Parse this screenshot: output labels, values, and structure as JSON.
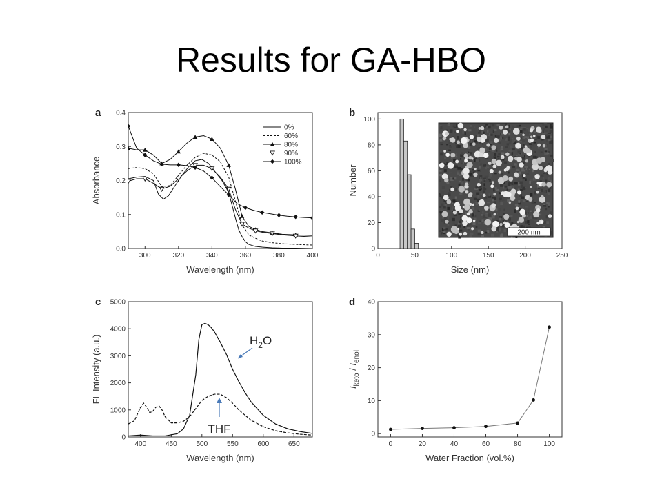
{
  "slide": {
    "title": "Results for GA-HBO"
  },
  "chart_data": [
    {
      "panel": "a",
      "type": "line",
      "xlabel": "Wavelength (nm)",
      "ylabel": "Absorbance",
      "xlim": [
        290,
        400
      ],
      "ylim": [
        0,
        0.4
      ],
      "xticks": [
        300,
        320,
        340,
        360,
        380,
        400
      ],
      "yticks": [
        0.0,
        0.1,
        0.2,
        0.3,
        0.4
      ],
      "legend": "top-right",
      "series": [
        {
          "name": "0%",
          "marker": "none",
          "dash": "solid",
          "x": [
            290,
            295,
            300,
            305,
            308,
            311,
            314,
            318,
            322,
            326,
            330,
            334,
            338,
            342,
            346,
            350,
            354,
            356,
            358,
            360,
            362,
            366,
            370,
            376,
            382,
            390,
            400
          ],
          "y": [
            0.205,
            0.21,
            0.212,
            0.2,
            0.16,
            0.145,
            0.155,
            0.185,
            0.215,
            0.24,
            0.258,
            0.262,
            0.25,
            0.225,
            0.2,
            0.165,
            0.09,
            0.055,
            0.035,
            0.02,
            0.012,
            0.006,
            0.004,
            0.002,
            0.001,
            0.001,
            0.0
          ]
        },
        {
          "name": "60%",
          "marker": "none",
          "dash": "dashed",
          "x": [
            290,
            295,
            300,
            305,
            310,
            315,
            320,
            325,
            330,
            335,
            340,
            345,
            350,
            354,
            358,
            362,
            366,
            370,
            376,
            382,
            390,
            400
          ],
          "y": [
            0.235,
            0.238,
            0.235,
            0.22,
            0.182,
            0.185,
            0.215,
            0.245,
            0.268,
            0.28,
            0.275,
            0.255,
            0.21,
            0.14,
            0.07,
            0.04,
            0.03,
            0.022,
            0.017,
            0.014,
            0.012,
            0.01
          ]
        },
        {
          "name": "80%",
          "marker": "triangle",
          "dash": "solid",
          "x": [
            290,
            295,
            300,
            305,
            310,
            315,
            320,
            325,
            330,
            335,
            340,
            345,
            350,
            354,
            358,
            362,
            366,
            370,
            376,
            382,
            390,
            400
          ],
          "y": [
            0.295,
            0.29,
            0.29,
            0.275,
            0.25,
            0.262,
            0.285,
            0.31,
            0.328,
            0.332,
            0.322,
            0.295,
            0.245,
            0.175,
            0.095,
            0.065,
            0.056,
            0.05,
            0.046,
            0.042,
            0.04,
            0.038
          ]
        },
        {
          "name": "90%",
          "marker": "open-triangle-down",
          "dash": "solid",
          "x": [
            290,
            295,
            300,
            305,
            310,
            315,
            320,
            325,
            330,
            335,
            340,
            345,
            350,
            354,
            358,
            362,
            366,
            370,
            376,
            382,
            390,
            400
          ],
          "y": [
            0.198,
            0.205,
            0.205,
            0.192,
            0.175,
            0.183,
            0.205,
            0.228,
            0.245,
            0.245,
            0.235,
            0.21,
            0.175,
            0.115,
            0.072,
            0.06,
            0.052,
            0.048,
            0.044,
            0.04,
            0.037,
            0.034
          ]
        },
        {
          "name": "100%",
          "marker": "diamond",
          "dash": "solid",
          "x": [
            290,
            295,
            300,
            305,
            310,
            315,
            320,
            325,
            330,
            335,
            340,
            345,
            350,
            355,
            360,
            365,
            370,
            375,
            380,
            385,
            390,
            395,
            400
          ],
          "y": [
            0.36,
            0.295,
            0.275,
            0.258,
            0.248,
            0.246,
            0.246,
            0.244,
            0.238,
            0.228,
            0.208,
            0.182,
            0.158,
            0.132,
            0.12,
            0.112,
            0.106,
            0.102,
            0.098,
            0.095,
            0.093,
            0.091,
            0.09
          ]
        }
      ]
    },
    {
      "panel": "b",
      "type": "bar",
      "xlabel": "Size (nm)",
      "ylabel": "Number",
      "xlim": [
        0,
        250
      ],
      "ylim": [
        0,
        105
      ],
      "xticks": [
        0,
        50,
        100,
        150,
        200,
        250
      ],
      "yticks": [
        0,
        20,
        40,
        60,
        80,
        100
      ],
      "bin_width": 5,
      "bins_start": [
        30,
        35,
        40,
        45,
        50
      ],
      "values": [
        100,
        83,
        57,
        15,
        4
      ],
      "inset": {
        "kind": "SEM micrograph",
        "scale_bar": "200 nm"
      }
    },
    {
      "panel": "c",
      "type": "line",
      "xlabel": "Wavelength (nm)",
      "ylabel": "FL Intensity (a.u.)",
      "xlim": [
        380,
        680
      ],
      "ylim": [
        0,
        5000
      ],
      "xticks": [
        400,
        450,
        500,
        550,
        600,
        650
      ],
      "yticks": [
        0,
        1000,
        2000,
        3000,
        4000,
        5000
      ],
      "annotations": [
        {
          "label": "H",
          "subscript": "2",
          "label_after": "O",
          "series": "solid"
        },
        {
          "label": "THF",
          "series": "dashed"
        }
      ],
      "series": [
        {
          "dash": "solid",
          "x": [
            380,
            400,
            420,
            440,
            460,
            470,
            480,
            490,
            495,
            500,
            505,
            510,
            515,
            520,
            530,
            540,
            550,
            560,
            570,
            580,
            600,
            620,
            640,
            660,
            680
          ],
          "y": [
            40,
            70,
            40,
            40,
            120,
            300,
            800,
            2300,
            3600,
            4150,
            4200,
            4150,
            4050,
            3900,
            3500,
            3050,
            2500,
            2050,
            1650,
            1300,
            800,
            480,
            300,
            200,
            130
          ]
        },
        {
          "dash": "dashed",
          "x": [
            380,
            390,
            395,
            400,
            405,
            410,
            415,
            420,
            425,
            430,
            435,
            440,
            450,
            460,
            470,
            480,
            490,
            500,
            510,
            520,
            530,
            540,
            550,
            560,
            580,
            600,
            620,
            640,
            660,
            680
          ],
          "y": [
            480,
            600,
            850,
            1100,
            1250,
            1100,
            900,
            950,
            1100,
            1150,
            1000,
            750,
            520,
            520,
            580,
            750,
            1050,
            1350,
            1500,
            1580,
            1580,
            1450,
            1250,
            1000,
            620,
            380,
            230,
            150,
            100,
            70
          ]
        }
      ]
    },
    {
      "panel": "d",
      "type": "line",
      "xlabel": "Water Fraction (vol.%)",
      "ylabel": "I_keto / I_enol",
      "ylabel_parts": {
        "i1": "I",
        "s1": "keto",
        "mid": " / ",
        "i2": "I",
        "s2": "enol"
      },
      "xlim": [
        -8,
        108
      ],
      "ylim": [
        -1,
        40
      ],
      "xticks": [
        0,
        20,
        40,
        60,
        80,
        100
      ],
      "yticks": [
        0,
        10,
        20,
        30,
        40
      ],
      "x": [
        0,
        20,
        40,
        60,
        80,
        90,
        100
      ],
      "y": [
        1.3,
        1.6,
        1.8,
        2.2,
        3.2,
        10.2,
        32.3
      ]
    }
  ]
}
